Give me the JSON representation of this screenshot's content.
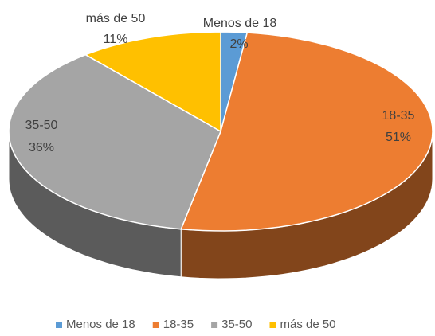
{
  "chart_data": {
    "type": "pie",
    "categories": [
      "Menos de 18",
      "18-35",
      "35-50",
      "más de 50"
    ],
    "values": [
      2,
      51,
      36,
      11
    ],
    "value_labels": [
      "2%",
      "51%",
      "36%",
      "11%"
    ],
    "colors": [
      "#5b9bd5",
      "#ed7d31",
      "#a5a5a5",
      "#ffc000"
    ],
    "legend": "bottom"
  }
}
